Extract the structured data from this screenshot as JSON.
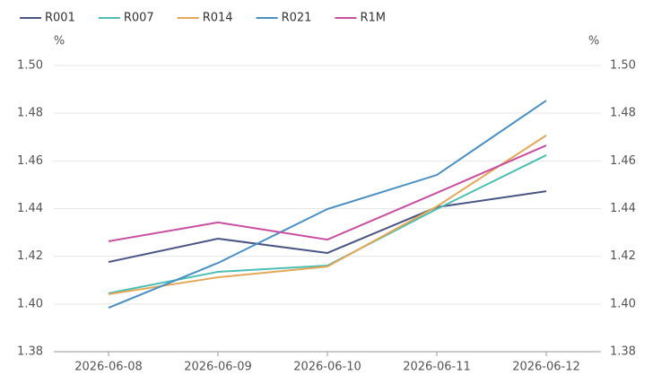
{
  "chart_data": {
    "type": "line",
    "categories": [
      "2026-06-08",
      "2026-06-09",
      "2026-06-10",
      "2026-06-11",
      "2026-06-12"
    ],
    "series": [
      {
        "name": "R001",
        "color": "#4a5584",
        "values": [
          1.4176,
          1.4274,
          1.4214,
          1.4406,
          1.4473
        ]
      },
      {
        "name": "R007",
        "color": "#4dbdb5",
        "values": [
          1.4045,
          1.4135,
          1.4161,
          1.4398,
          1.4624
        ]
      },
      {
        "name": "R014",
        "color": "#e3a857",
        "values": [
          1.4041,
          1.4112,
          1.4157,
          1.4409,
          1.4707
        ]
      },
      {
        "name": "R021",
        "color": "#4a8fc4",
        "values": [
          1.3984,
          1.4172,
          1.4398,
          1.4541,
          1.4853
        ]
      },
      {
        "name": "R1M",
        "color": "#c94fa0",
        "values": [
          1.4263,
          1.4342,
          1.427,
          1.4466,
          1.4665
        ]
      }
    ],
    "y_unit": "%",
    "y2_unit": "%",
    "ylim": [
      1.38,
      1.5
    ],
    "yticks": [
      1.38,
      {
        "value": 1.4,
        "label": "1.40"
      },
      1.42,
      1.44,
      1.46,
      1.48,
      {
        "value": 1.5,
        "label": "1.50"
      }
    ],
    "y2lim": [
      1.38,
      1.5
    ],
    "y2ticks": [
      1.38,
      {
        "value": 1.4,
        "label": "1.40"
      },
      1.42,
      1.44,
      1.46,
      1.48,
      {
        "value": 1.5,
        "label": "1.50"
      }
    ],
    "grid": true,
    "legend": "top-left"
  }
}
